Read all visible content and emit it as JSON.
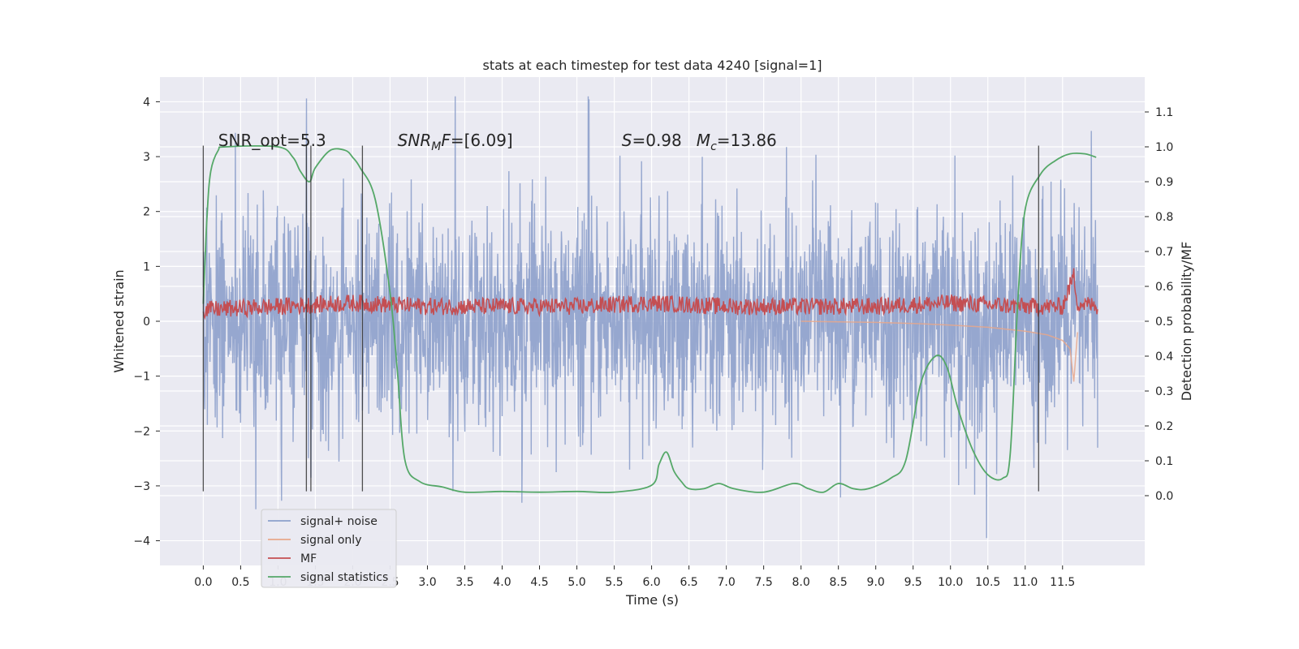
{
  "chart_data": {
    "type": "line",
    "title": "stats at each timestep for test data 4240 [signal=1]",
    "xlabel": "Time (s)",
    "ylabel_left": "Whitened strain",
    "ylabel_right": "Detection probability/MF",
    "xlim": [
      -0.58,
      12.6
    ],
    "ylim_left": [
      -4.45,
      4.45
    ],
    "ylim_right": [
      -0.2,
      1.2
    ],
    "x_ticks": [
      "0.0",
      "0.5",
      "1.0",
      "1.5",
      "2.0",
      "2.5",
      "3.0",
      "3.5",
      "4.0",
      "4.5",
      "5.0",
      "5.5",
      "6.0",
      "6.5",
      "7.0",
      "7.5",
      "8.0",
      "8.5",
      "9.0",
      "9.5",
      "10.0",
      "10.5",
      "11.0",
      "11.5"
    ],
    "y_ticks_left": [
      "4",
      "3",
      "2",
      "1",
      "0",
      "−1",
      "−2",
      "−3",
      "−4"
    ],
    "y_ticks_right": [
      "1.1",
      "1.0",
      "0.9",
      "0.8",
      "0.7",
      "0.6",
      "0.5",
      "0.4",
      "0.3",
      "0.2",
      "0.1",
      "0.0"
    ],
    "grid": true,
    "legend_position": "lower-left",
    "annotations": [
      {
        "text": "SNR_opt=5.3",
        "x": 0.2
      },
      {
        "text": "SNR_MF=[6.09]",
        "x": 2.6
      },
      {
        "text": "S=0.98",
        "x": 5.6
      },
      {
        "text": "Mc=13.86",
        "x": 6.6
      }
    ],
    "vertical_markers": [
      0.0,
      1.38,
      1.44,
      2.13,
      11.18
    ],
    "series": [
      {
        "name": "signal+ noise",
        "color": "#8da0cb",
        "description_note": "dense whitened strain noise band roughly between -2 and 2 with spikes up to about 4 and -3.9, spanning 0 to 12 s"
      },
      {
        "name": "signal only",
        "color": "#e8a78b",
        "x": [
          8.0,
          9.0,
          9.5,
          10.0,
          10.5,
          11.0,
          11.3,
          11.5,
          11.6,
          11.65,
          11.7
        ],
        "y": [
          0.0,
          -0.02,
          -0.04,
          -0.07,
          -0.11,
          -0.18,
          -0.25,
          -0.35,
          -0.5,
          -1.1,
          -0.2
        ]
      },
      {
        "name": "MF",
        "color": "#c44e52",
        "x": [
          0.0,
          1.0,
          2.0,
          3.0,
          4.0,
          5.0,
          6.0,
          7.0,
          8.0,
          9.0,
          10.0,
          11.0,
          11.5,
          11.65,
          11.7,
          12.0
        ],
        "y": [
          0.53,
          0.54,
          0.55,
          0.54,
          0.54,
          0.54,
          0.55,
          0.54,
          0.54,
          0.54,
          0.55,
          0.54,
          0.54,
          0.63,
          0.55,
          0.54
        ]
      },
      {
        "name": "signal statistics",
        "color": "#55a868",
        "x": [
          0.0,
          0.05,
          0.1,
          0.2,
          0.3,
          1.0,
          1.2,
          1.3,
          1.42,
          1.5,
          1.7,
          1.9,
          2.0,
          2.1,
          2.3,
          2.5,
          2.6,
          2.7,
          2.9,
          3.2,
          3.5,
          4.0,
          4.5,
          5.0,
          5.5,
          6.0,
          6.1,
          6.2,
          6.3,
          6.4,
          6.5,
          6.7,
          6.9,
          7.1,
          7.5,
          7.9,
          8.1,
          8.3,
          8.5,
          8.7,
          8.9,
          9.2,
          9.4,
          9.6,
          9.8,
          9.95,
          10.1,
          10.3,
          10.5,
          10.7,
          10.8,
          10.9,
          11.0,
          11.2,
          11.4,
          11.6,
          11.8,
          11.95
        ],
        "y": [
          0.55,
          0.8,
          0.93,
          0.99,
          1.0,
          1.0,
          0.97,
          0.93,
          0.9,
          0.94,
          0.99,
          0.99,
          0.97,
          0.94,
          0.85,
          0.58,
          0.35,
          0.1,
          0.04,
          0.025,
          0.01,
          0.012,
          0.01,
          0.012,
          0.01,
          0.03,
          0.09,
          0.125,
          0.07,
          0.04,
          0.02,
          0.02,
          0.035,
          0.02,
          0.01,
          0.035,
          0.02,
          0.01,
          0.035,
          0.02,
          0.02,
          0.05,
          0.1,
          0.32,
          0.4,
          0.37,
          0.25,
          0.13,
          0.06,
          0.05,
          0.12,
          0.55,
          0.82,
          0.92,
          0.96,
          0.98,
          0.98,
          0.97
        ]
      }
    ]
  }
}
